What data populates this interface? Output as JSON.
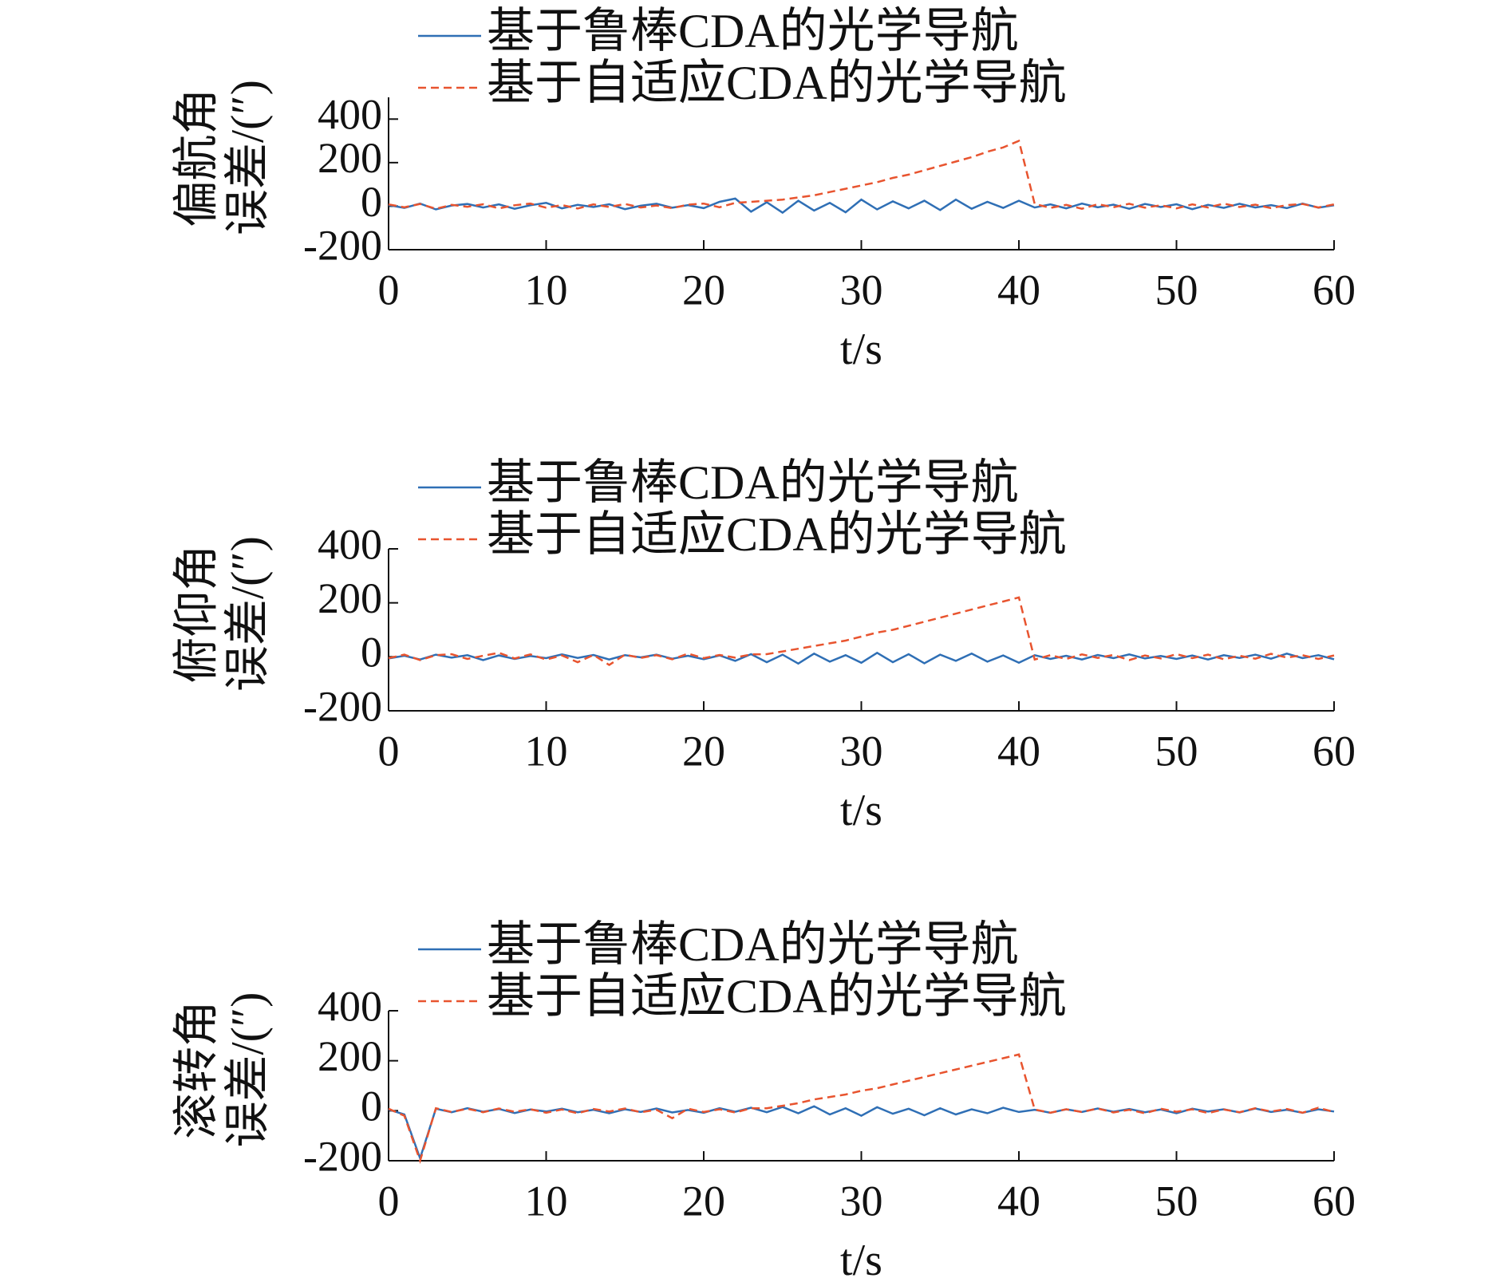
{
  "chart_data": [
    {
      "type": "line",
      "xlabel": "t/s",
      "ylabel": [
        "偏航角",
        "误差/(″)"
      ],
      "x": [
        0,
        1,
        2,
        3,
        4,
        5,
        6,
        7,
        8,
        9,
        10,
        11,
        12,
        13,
        14,
        15,
        16,
        17,
        18,
        19,
        20,
        21,
        22,
        23,
        24,
        25,
        26,
        27,
        28,
        29,
        30,
        31,
        32,
        33,
        34,
        35,
        36,
        37,
        38,
        39,
        40,
        41,
        42,
        43,
        44,
        45,
        46,
        47,
        48,
        49,
        50,
        51,
        52,
        53,
        54,
        55,
        56,
        57,
        58,
        59,
        60
      ],
      "xlim": [
        0,
        60
      ],
      "xticks": [
        0,
        10,
        20,
        30,
        40,
        50,
        60
      ],
      "ylim": [
        -200,
        500
      ],
      "yticks": [
        -200,
        0,
        200,
        400
      ],
      "series": [
        {
          "name": "基于鲁棒CDA的光学导航",
          "color": "#2f6fb5",
          "dash": false,
          "values": [
            5,
            -8,
            12,
            -15,
            3,
            10,
            -6,
            8,
            -12,
            4,
            15,
            -10,
            6,
            -4,
            9,
            -14,
            2,
            11,
            -7,
            5,
            -9,
            20,
            35,
            -25,
            18,
            -30,
            25,
            -20,
            15,
            -28,
            30,
            -15,
            22,
            -10,
            25,
            -18,
            30,
            -12,
            20,
            -8,
            25,
            -6,
            8,
            -10,
            12,
            -5,
            7,
            -12,
            10,
            -4,
            9,
            -14,
            6,
            -8,
            11,
            -6,
            5,
            -9,
            12,
            -7,
            4
          ]
        },
        {
          "name": "基于自适应CDA的光学导航",
          "color": "#e8542f",
          "dash": true,
          "values": [
            8,
            -5,
            10,
            -12,
            6,
            -3,
            9,
            -10,
            4,
            12,
            -7,
            5,
            -11,
            8,
            -4,
            10,
            -6,
            3,
            -9,
            7,
            12,
            -5,
            15,
            20,
            25,
            30,
            40,
            50,
            65,
            80,
            95,
            110,
            130,
            145,
            165,
            185,
            205,
            225,
            250,
            270,
            300,
            10,
            -8,
            6,
            -12,
            9,
            -5,
            11,
            -7,
            4,
            -10,
            8,
            -6,
            12,
            -4,
            7,
            -9,
            5,
            10,
            -6,
            8
          ]
        }
      ]
    },
    {
      "type": "line",
      "xlabel": "t/s",
      "ylabel": [
        "俯仰角",
        "误差/(″)"
      ],
      "x": [
        0,
        1,
        2,
        3,
        4,
        5,
        6,
        7,
        8,
        9,
        10,
        11,
        12,
        13,
        14,
        15,
        16,
        17,
        18,
        19,
        20,
        21,
        22,
        23,
        24,
        25,
        26,
        27,
        28,
        29,
        30,
        31,
        32,
        33,
        34,
        35,
        36,
        37,
        38,
        39,
        40,
        41,
        42,
        43,
        44,
        45,
        46,
        47,
        48,
        49,
        50,
        51,
        52,
        53,
        54,
        55,
        56,
        57,
        58,
        59,
        60
      ],
      "xlim": [
        0,
        60
      ],
      "xticks": [
        0,
        10,
        20,
        30,
        40,
        50,
        60
      ],
      "ylim": [
        -200,
        400
      ],
      "yticks": [
        -200,
        0,
        200,
        400
      ],
      "series": [
        {
          "name": "基于鲁棒CDA的光学导航",
          "color": "#2f6fb5",
          "dash": false,
          "values": [
            -6,
            4,
            -10,
            8,
            -3,
            6,
            -12,
            5,
            -8,
            3,
            -5,
            9,
            -4,
            7,
            -10,
            6,
            -2,
            8,
            -7,
            4,
            -9,
            5,
            -15,
            10,
            -20,
            8,
            -25,
            12,
            -18,
            6,
            -22,
            15,
            -20,
            10,
            -24,
            8,
            -15,
            12,
            -18,
            5,
            -22,
            6,
            -8,
            4,
            -10,
            7,
            -5,
            9,
            -6,
            3,
            -8,
            5,
            -10,
            6,
            -4,
            8,
            -7,
            12,
            -5,
            6,
            -9
          ]
        },
        {
          "name": "基于自适应CDA的光学导航",
          "color": "#e8542f",
          "dash": true,
          "values": [
            -5,
            8,
            -12,
            6,
            10,
            -8,
            4,
            15,
            -6,
            9,
            -10,
            5,
            -20,
            7,
            -30,
            8,
            -4,
            6,
            -9,
            12,
            -5,
            7,
            -3,
            9,
            10,
            20,
            30,
            40,
            50,
            60,
            75,
            90,
            100,
            115,
            130,
            145,
            160,
            175,
            190,
            205,
            220,
            -10,
            6,
            -8,
            9,
            -4,
            7,
            -12,
            5,
            -6,
            10,
            -5,
            8,
            -9,
            4,
            -7,
            11,
            -3,
            6,
            -8,
            5
          ]
        }
      ]
    },
    {
      "type": "line",
      "xlabel": "t/s",
      "ylabel": [
        "滚转角",
        "误差/(″)"
      ],
      "x": [
        0,
        1,
        2,
        3,
        4,
        5,
        6,
        7,
        8,
        9,
        10,
        11,
        12,
        13,
        14,
        15,
        16,
        17,
        18,
        19,
        20,
        21,
        22,
        23,
        24,
        25,
        26,
        27,
        28,
        29,
        30,
        31,
        32,
        33,
        34,
        35,
        36,
        37,
        38,
        39,
        40,
        41,
        42,
        43,
        44,
        45,
        46,
        47,
        48,
        49,
        50,
        51,
        52,
        53,
        54,
        55,
        56,
        57,
        58,
        59,
        60
      ],
      "xlim": [
        0,
        60
      ],
      "xticks": [
        0,
        10,
        20,
        30,
        40,
        50,
        60
      ],
      "ylim": [
        -200,
        400
      ],
      "yticks": [
        -200,
        0,
        200,
        400
      ],
      "series": [
        {
          "name": "基于鲁棒CDA的光学导航",
          "color": "#2f6fb5",
          "dash": false,
          "values": [
            5,
            -15,
            -190,
            8,
            -6,
            10,
            -4,
            7,
            -9,
            5,
            -3,
            8,
            -6,
            4,
            -10,
            6,
            -5,
            9,
            -7,
            3,
            -8,
            10,
            -4,
            12,
            -6,
            15,
            -10,
            18,
            -15,
            10,
            -20,
            14,
            -12,
            8,
            -18,
            10,
            -15,
            6,
            -10,
            12,
            -5,
            4,
            -8,
            6,
            -5,
            9,
            -4,
            7,
            -6,
            5,
            -10,
            8,
            -3,
            6,
            -7,
            9,
            -5,
            4,
            -8,
            6,
            -3
          ]
        },
        {
          "name": "基于自适应CDA的光学导航",
          "color": "#e8542f",
          "dash": true,
          "values": [
            8,
            -20,
            -200,
            10,
            -5,
            8,
            -6,
            9,
            -4,
            6,
            -8,
            5,
            -10,
            7,
            -3,
            9,
            -6,
            4,
            -30,
            8,
            -5,
            6,
            -7,
            10,
            10,
            20,
            30,
            45,
            55,
            65,
            80,
            90,
            105,
            120,
            135,
            150,
            165,
            180,
            195,
            210,
            225,
            5,
            -8,
            6,
            -5,
            9,
            -7,
            4,
            -10,
            8,
            -4,
            6,
            -9,
            5,
            -6,
            10,
            -3,
            7,
            -8,
            12,
            -5
          ]
        }
      ]
    }
  ]
}
